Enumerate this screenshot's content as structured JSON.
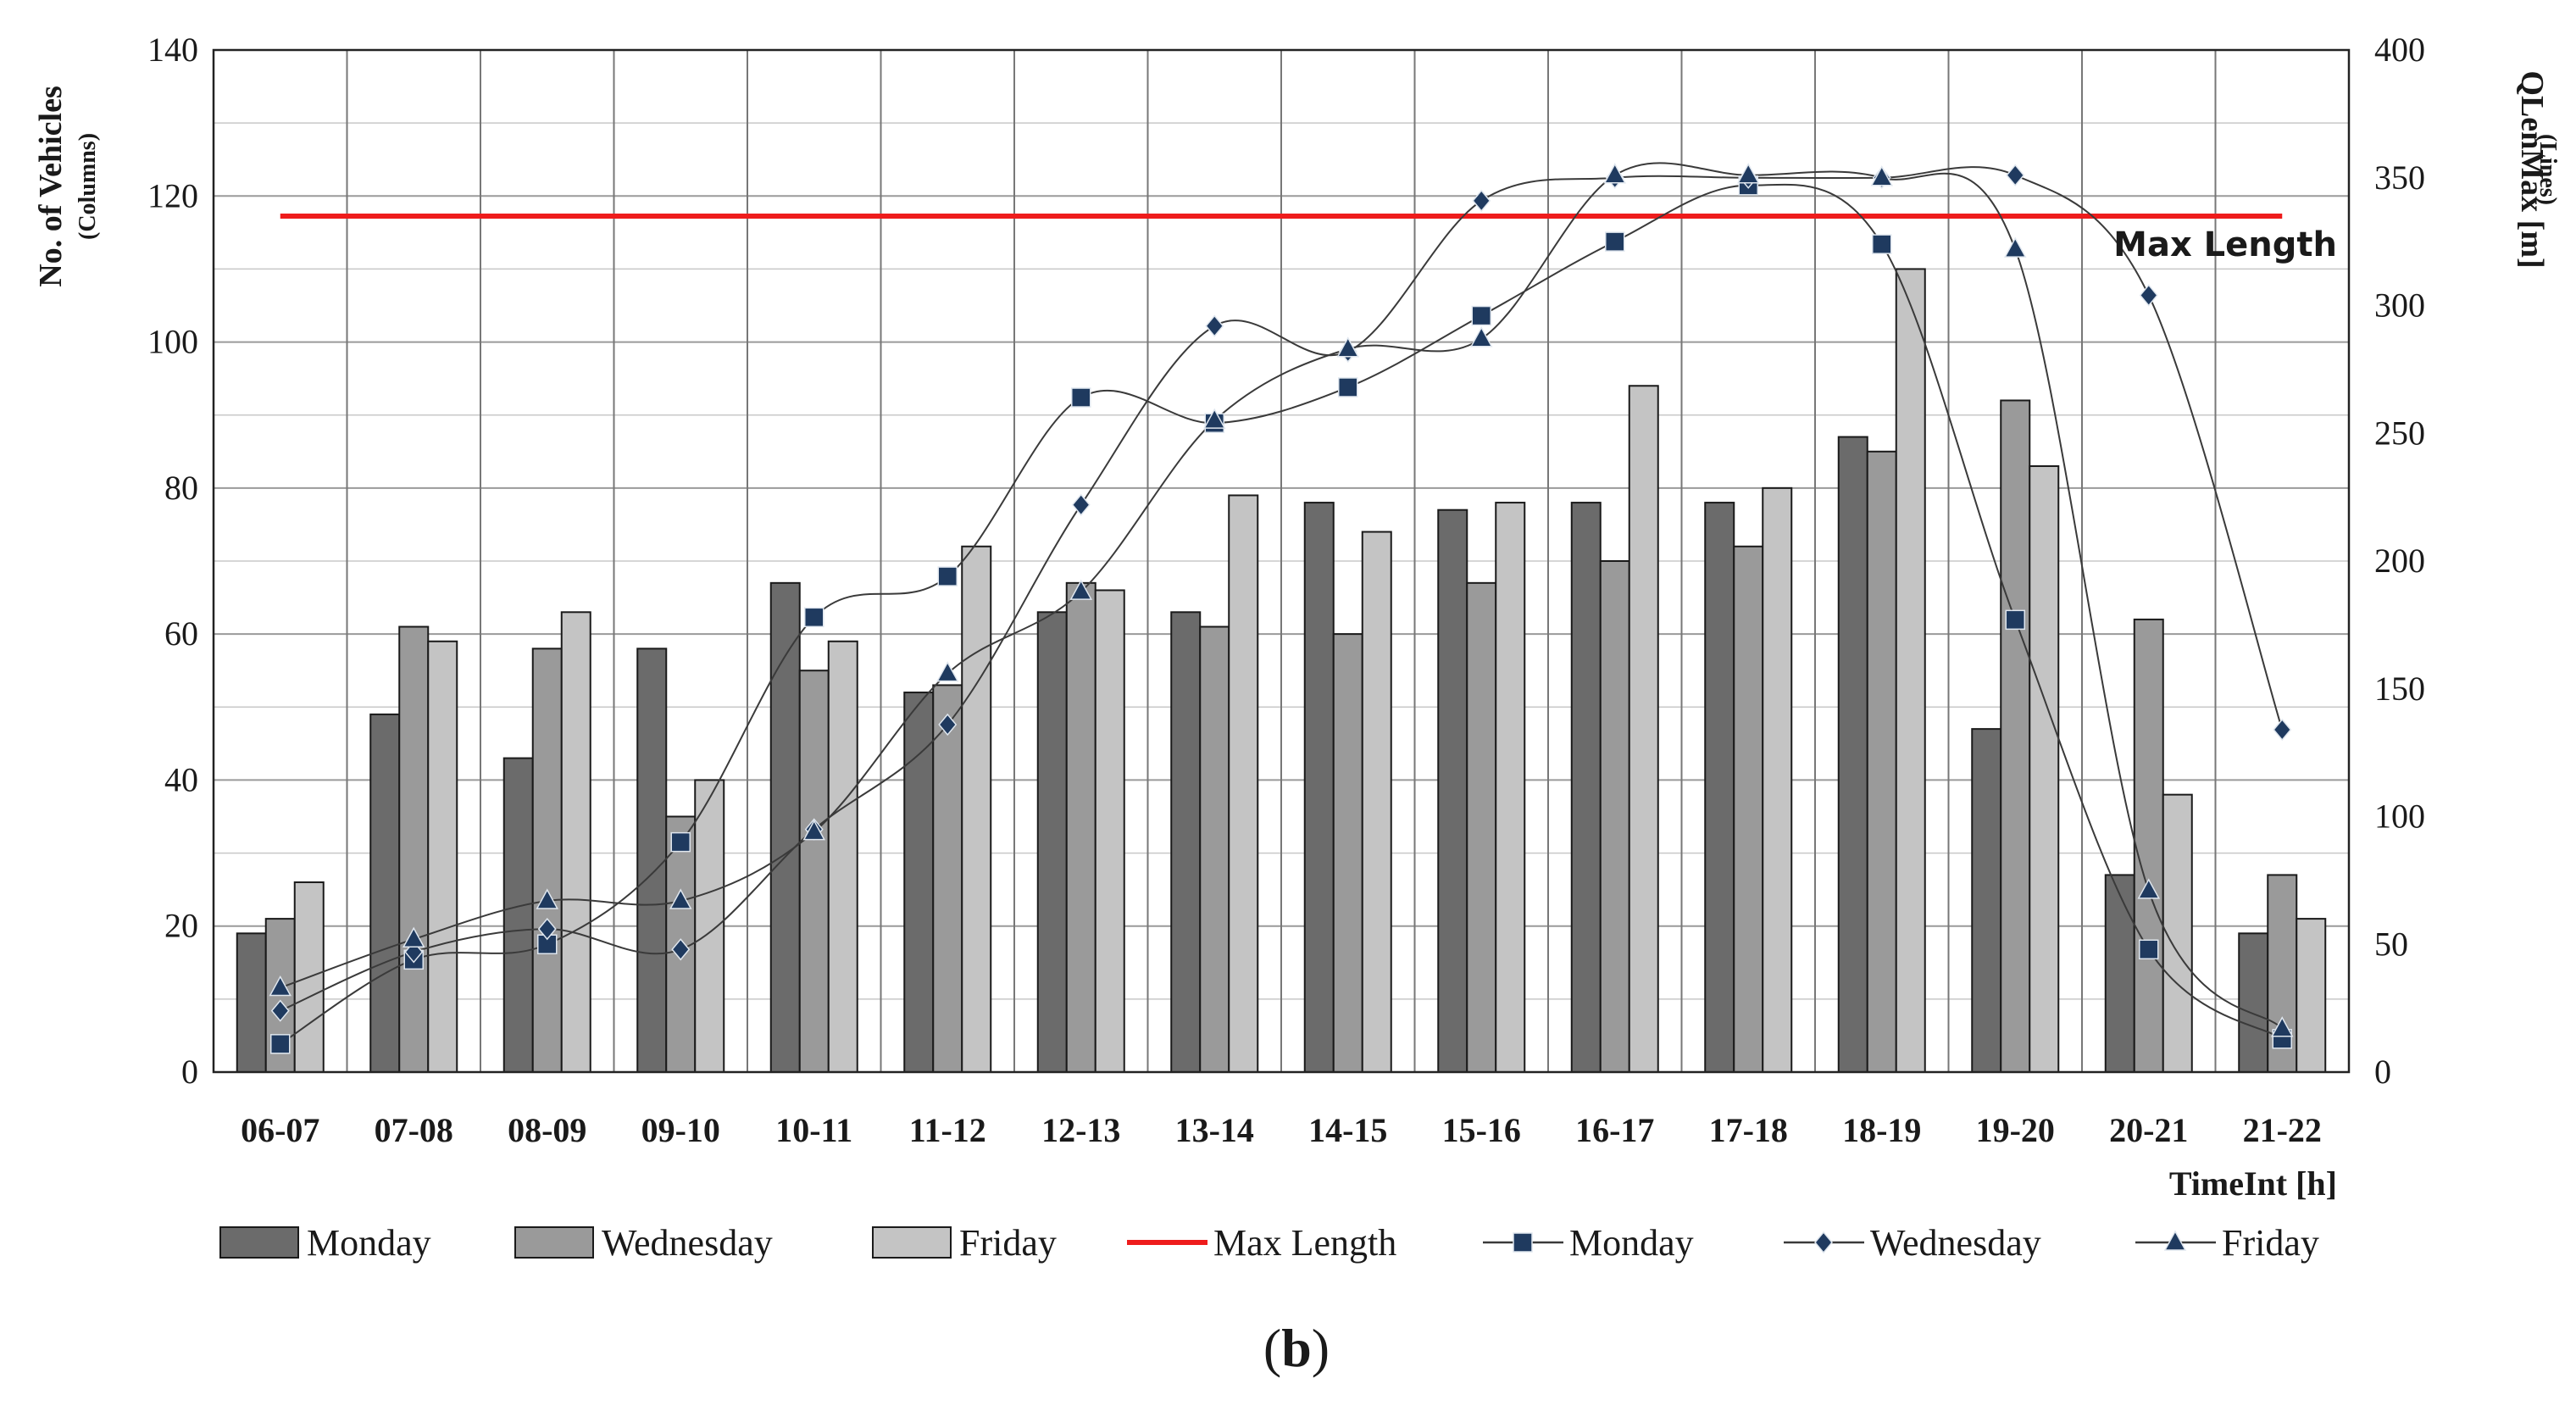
{
  "chart_data": {
    "type": "bar",
    "categories": [
      "06-07",
      "07-08",
      "08-09",
      "09-10",
      "10-11",
      "11-12",
      "12-13",
      "13-14",
      "14-15",
      "15-16",
      "16-17",
      "17-18",
      "18-19",
      "19-20",
      "20-21",
      "21-22"
    ],
    "xlabel": "TimeInt [h]",
    "ylabel_left": "No. of Vehicles",
    "ylabel_left_sub": "(Columns)",
    "ylabel_right": "QLenMax [m]",
    "ylabel_right_sub": "(Lines)",
    "ylim_left": [
      0,
      140
    ],
    "yticks_left": [
      0,
      20,
      40,
      60,
      80,
      100,
      120,
      140
    ],
    "ylim_right": [
      0,
      400
    ],
    "yticks_right": [
      0,
      50,
      100,
      150,
      200,
      250,
      300,
      350,
      400
    ],
    "grid": true,
    "bar_series": [
      {
        "name": "Monday",
        "color": "#6b6b6b",
        "values": [
          19,
          49,
          43,
          58,
          67,
          52,
          63,
          63,
          78,
          77,
          78,
          78,
          87,
          47,
          27,
          19
        ]
      },
      {
        "name": "Wednesday",
        "color": "#9a9a9a",
        "values": [
          21,
          61,
          58,
          35,
          55,
          53,
          67,
          61,
          60,
          67,
          70,
          72,
          85,
          92,
          62,
          27
        ]
      },
      {
        "name": "Friday",
        "color": "#c4c4c4",
        "values": [
          26,
          59,
          63,
          40,
          59,
          72,
          66,
          79,
          74,
          78,
          94,
          80,
          110,
          83,
          38,
          21
        ]
      }
    ],
    "line_series": [
      {
        "name": "Monday",
        "marker": "square",
        "color": "#1f3a5f",
        "values": [
          11,
          44,
          50,
          90,
          178,
          194,
          264,
          254,
          268,
          296,
          325,
          347,
          324,
          177,
          48,
          13
        ]
      },
      {
        "name": "Wednesday",
        "marker": "diamond",
        "color": "#1f3a5f",
        "values": [
          24,
          47,
          56,
          48,
          95,
          136,
          222,
          292,
          282,
          341,
          350,
          350,
          350,
          351,
          304,
          134
        ]
      },
      {
        "name": "Friday",
        "marker": "triangle",
        "color": "#1f3a5f",
        "values": [
          33,
          52,
          67,
          67,
          94,
          156,
          188,
          255,
          283,
          287,
          351,
          351,
          350,
          322,
          71,
          17
        ]
      }
    ],
    "max_length": {
      "name": "Max Length",
      "label": "Max Length",
      "value_right": 335,
      "color": "#ee1c1c"
    },
    "legend": {
      "position": "bottom",
      "items": [
        {
          "kind": "bar",
          "label": "Monday",
          "color": "#6b6b6b"
        },
        {
          "kind": "bar",
          "label": "Wednesday",
          "color": "#9a9a9a"
        },
        {
          "kind": "bar",
          "label": "Friday",
          "color": "#c4c4c4"
        },
        {
          "kind": "redline",
          "label": "Max Length",
          "color": "#ee1c1c"
        },
        {
          "kind": "marker",
          "marker": "square",
          "label": "Monday",
          "color": "#1f3a5f"
        },
        {
          "kind": "marker",
          "marker": "diamond",
          "label": "Wednesday",
          "color": "#1f3a5f"
        },
        {
          "kind": "marker",
          "marker": "triangle",
          "label": "Friday",
          "color": "#1f3a5f"
        }
      ]
    }
  },
  "caption": {
    "open": "(",
    "letter": "b",
    "close": ")"
  }
}
